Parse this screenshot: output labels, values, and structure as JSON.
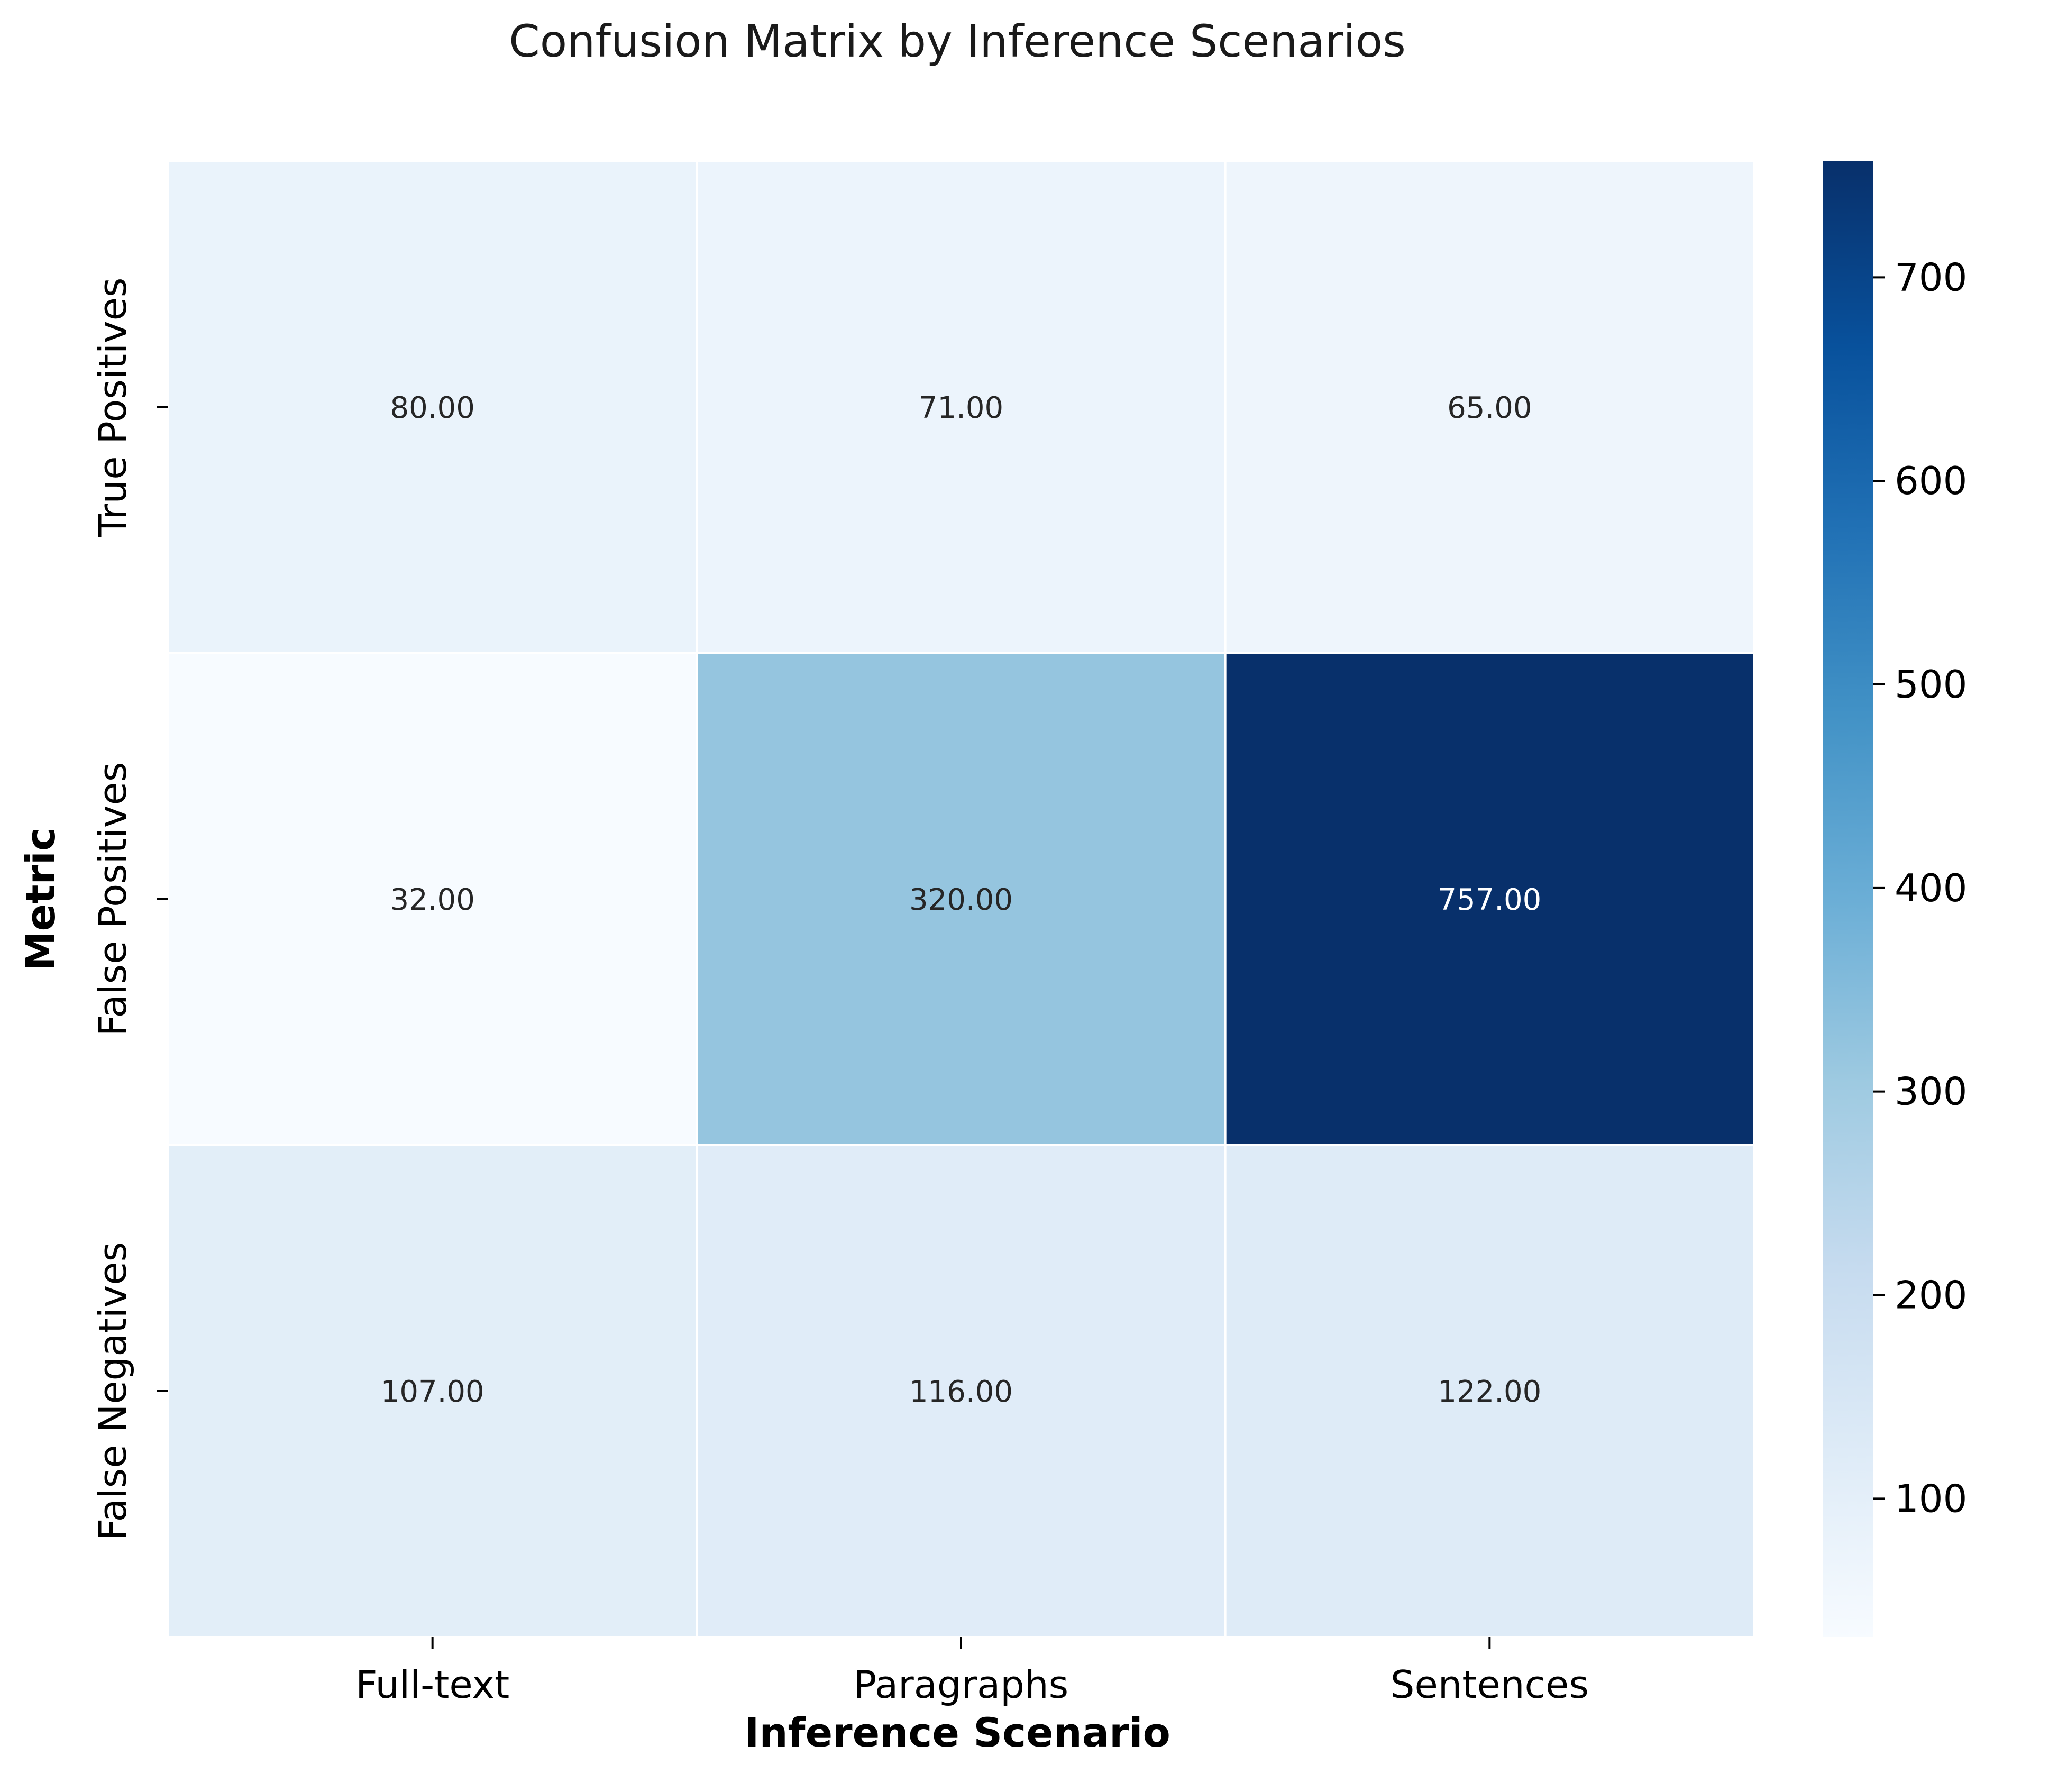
{
  "chart_data": {
    "type": "heatmap",
    "title": "Confusion Matrix by Inference Scenarios",
    "xlabel": "Inference Scenario",
    "ylabel": "Metric",
    "x_categories": [
      "Full-text",
      "Paragraphs",
      "Sentences"
    ],
    "y_categories": [
      "True Positives",
      "False Positives",
      "False Negatives"
    ],
    "values": [
      [
        80,
        71,
        65
      ],
      [
        32,
        320,
        757
      ],
      [
        107,
        116,
        122
      ]
    ],
    "value_format": "0.00",
    "colormap": "Blues",
    "colorbar": {
      "vmin": 32,
      "vmax": 757,
      "ticks": [
        100,
        200,
        300,
        400,
        500,
        600,
        700
      ]
    }
  }
}
